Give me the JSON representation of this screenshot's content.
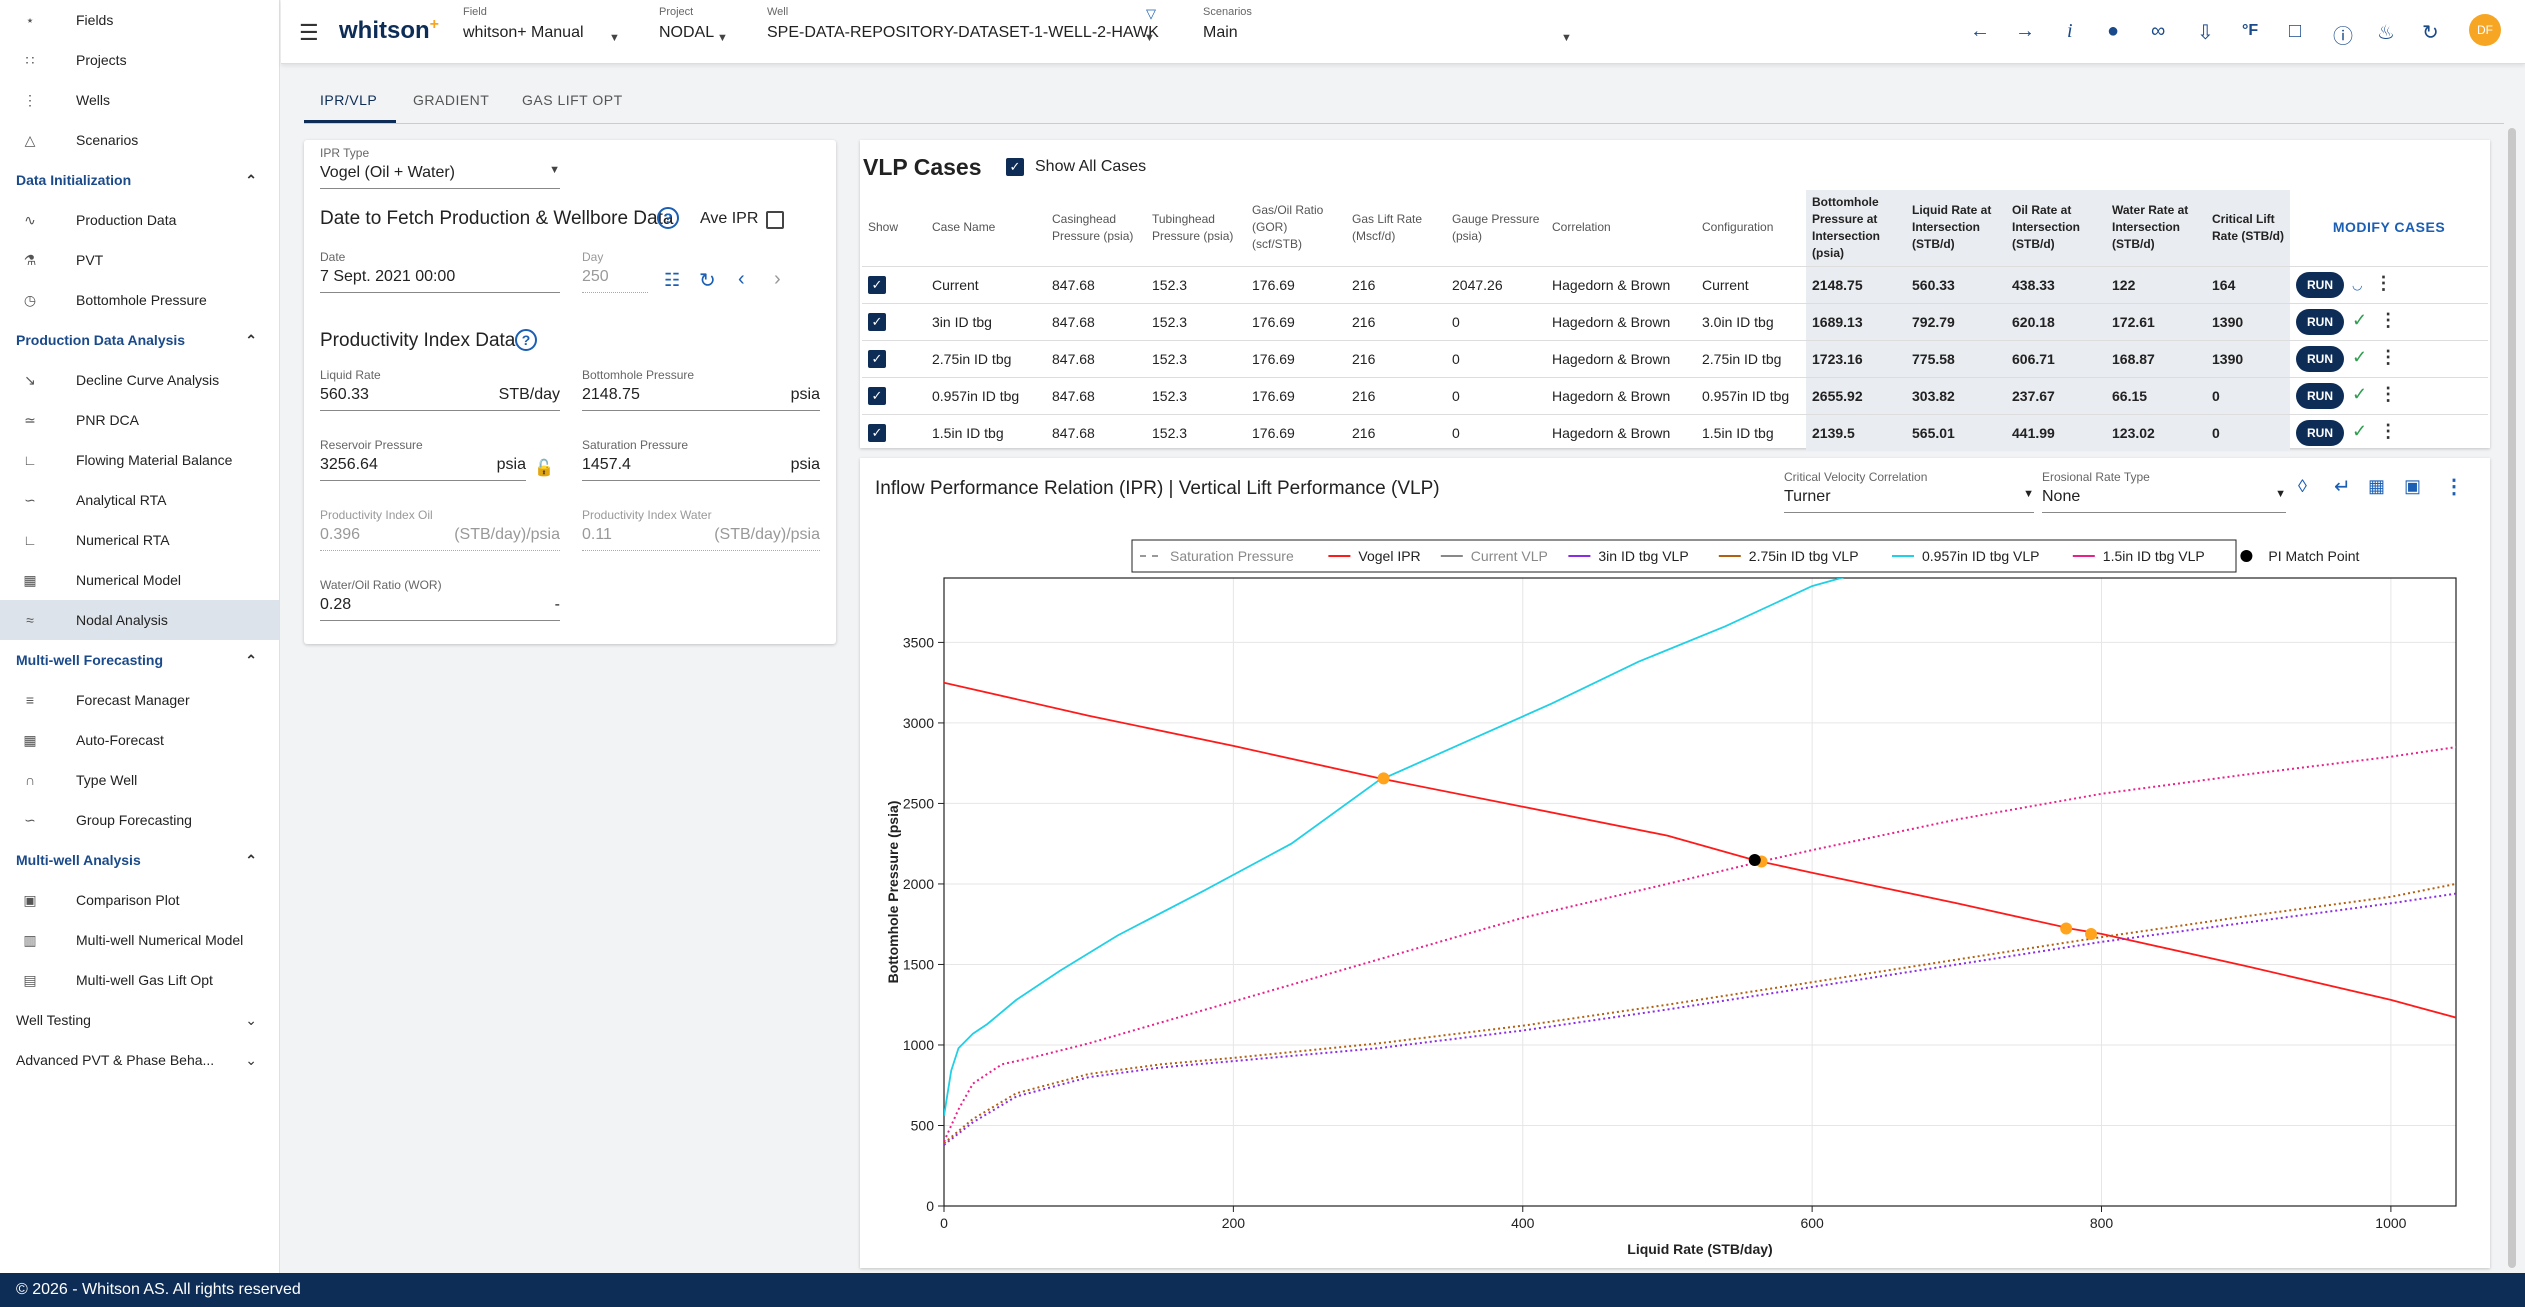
{
  "sidebar": {
    "top_items": [
      {
        "label": "Fields",
        "icon": "fields-icon"
      },
      {
        "label": "Projects",
        "icon": "projects-icon"
      },
      {
        "label": "Wells",
        "icon": "wells-icon"
      },
      {
        "label": "Scenarios",
        "icon": "scenarios-icon"
      }
    ],
    "sections": [
      {
        "title": "Data Initialization",
        "expanded": true,
        "items": [
          {
            "label": "Production Data",
            "icon": "production-data-icon"
          },
          {
            "label": "PVT",
            "icon": "pvt-icon"
          },
          {
            "label": "Bottomhole Pressure",
            "icon": "bottomhole-pressure-icon"
          }
        ]
      },
      {
        "title": "Production Data Analysis",
        "expanded": true,
        "items": [
          {
            "label": "Decline Curve Analysis",
            "icon": "dca-icon"
          },
          {
            "label": "PNR DCA",
            "icon": "pnr-dca-icon"
          },
          {
            "label": "Flowing Material Balance",
            "icon": "fmb-icon"
          },
          {
            "label": "Analytical RTA",
            "icon": "analytical-rta-icon"
          },
          {
            "label": "Numerical RTA",
            "icon": "numerical-rta-icon"
          },
          {
            "label": "Numerical Model",
            "icon": "numerical-model-icon"
          },
          {
            "label": "Nodal Analysis",
            "icon": "nodal-analysis-icon",
            "active": true
          }
        ]
      },
      {
        "title": "Multi-well Forecasting",
        "expanded": true,
        "items": [
          {
            "label": "Forecast Manager",
            "icon": "forecast-manager-icon"
          },
          {
            "label": "Auto-Forecast",
            "icon": "auto-forecast-icon"
          },
          {
            "label": "Type Well",
            "icon": "type-well-icon"
          },
          {
            "label": "Group Forecasting",
            "icon": "group-forecasting-icon"
          }
        ]
      },
      {
        "title": "Multi-well Analysis",
        "expanded": true,
        "items": [
          {
            "label": "Comparison Plot",
            "icon": "comparison-plot-icon"
          },
          {
            "label": "Multi-well Numerical Model",
            "icon": "multiwell-numerical-icon"
          },
          {
            "label": "Multi-well Gas Lift Opt",
            "icon": "multiwell-gaslift-icon"
          }
        ]
      },
      {
        "title": "Well Testing",
        "expanded": false,
        "items": []
      },
      {
        "title": "Advanced PVT & Phase Beha...",
        "expanded": false,
        "items": []
      }
    ]
  },
  "footer": {
    "text": "© 2026 - Whitson AS. All rights reserved"
  },
  "topbar": {
    "brand": "whitson",
    "brand_sup": "+",
    "field": {
      "label": "Field",
      "value": "whitson+ Manual"
    },
    "project": {
      "label": "Project",
      "value": "NODAL"
    },
    "well": {
      "label": "Well",
      "value": "SPE-DATA-REPOSITORY-DATASET-1-WELL-2-HAWK"
    },
    "scenario": {
      "label": "Scenarios",
      "value": "Main"
    },
    "avatar": "DF",
    "icons": [
      "arrow-back-icon",
      "arrow-forward-icon",
      "info-icon",
      "globe-icon",
      "link-icon",
      "download-icon",
      "fahrenheit-icon",
      "feedback-icon",
      "help-icon",
      "bell-icon",
      "refresh-icon"
    ]
  },
  "tabs": [
    {
      "label": "IPR/VLP",
      "active": true
    },
    {
      "label": "GRADIENT"
    },
    {
      "label": "GAS LIFT OPT"
    }
  ],
  "ipr": {
    "type_label": "IPR Type",
    "type_value": "Vogel (Oil + Water)",
    "fetch_title": "Date to Fetch Production & Wellbore Data",
    "ave_ipr_label": "Ave IPR",
    "date_label": "Date",
    "date_value": "7 Sept. 2021 00:00",
    "day_label": "Day",
    "day_value": "250",
    "pi_title": "Productivity Index Data",
    "liquid_rate": {
      "label": "Liquid Rate",
      "value": "560.33",
      "unit": "STB/day"
    },
    "bhp": {
      "label": "Bottomhole Pressure",
      "value": "2148.75",
      "unit": "psia"
    },
    "reservoir_pressure": {
      "label": "Reservoir Pressure",
      "value": "3256.64",
      "unit": "psia"
    },
    "saturation_pressure": {
      "label": "Saturation Pressure",
      "value": "1457.4",
      "unit": "psia"
    },
    "pi_oil": {
      "label": "Productivity Index Oil",
      "value": "0.396",
      "unit": "(STB/day)/psia"
    },
    "pi_water": {
      "label": "Productivity Index Water",
      "value": "0.11",
      "unit": "(STB/day)/psia"
    },
    "wor": {
      "label": "Water/Oil Ratio (WOR)",
      "value": "0.28",
      "unit": "-"
    }
  },
  "vlp": {
    "title": "VLP Cases",
    "show_all_label": "Show All Cases",
    "modify_label": "MODIFY CASES",
    "run_label": "RUN",
    "headers": [
      "Show",
      "Case Name",
      "Casinghead Pressure (psia)",
      "Tubinghead Pressure (psia)",
      "Gas/Oil Ratio (GOR) (scf/STB)",
      "Gas Lift Rate (Mscf/d)",
      "Gauge Pressure (psia)",
      "Correlation",
      "Configuration",
      "Bottomhole Pressure at Intersection (psia)",
      "Liquid Rate at Intersection (STB/d)",
      "Oil Rate at Intersection (STB/d)",
      "Water Rate at Intersection (STB/d)",
      "Critical Lift Rate (STB/d)"
    ],
    "rows": [
      {
        "cells": [
          "Current",
          "847.68",
          "152.3",
          "176.69",
          "216",
          "2047.26",
          "Hagedorn & Brown",
          "Current",
          "2148.75",
          "560.33",
          "438.33",
          "122",
          "164"
        ],
        "status": "loading"
      },
      {
        "cells": [
          "3in ID tbg",
          "847.68",
          "152.3",
          "176.69",
          "216",
          "0",
          "Hagedorn & Brown",
          "3.0in ID tbg",
          "1689.13",
          "792.79",
          "620.18",
          "172.61",
          "1390"
        ],
        "status": "done"
      },
      {
        "cells": [
          "2.75in ID tbg",
          "847.68",
          "152.3",
          "176.69",
          "216",
          "0",
          "Hagedorn & Brown",
          "2.75in ID tbg",
          "1723.16",
          "775.58",
          "606.71",
          "168.87",
          "1390"
        ],
        "status": "done"
      },
      {
        "cells": [
          "0.957in ID tbg",
          "847.68",
          "152.3",
          "176.69",
          "216",
          "0",
          "Hagedorn & Brown",
          "0.957in ID tbg",
          "2655.92",
          "303.82",
          "237.67",
          "66.15",
          "0"
        ],
        "status": "done"
      },
      {
        "cells": [
          "1.5in ID tbg",
          "847.68",
          "152.3",
          "176.69",
          "216",
          "0",
          "Hagedorn & Brown",
          "1.5in ID tbg",
          "2139.5",
          "565.01",
          "441.99",
          "123.02",
          "0"
        ],
        "status": "done"
      }
    ]
  },
  "chart_header": {
    "title": "Inflow Performance Relation (IPR) | Vertical Lift Performance (VLP)",
    "cv_label": "Critical Velocity Correlation",
    "cv_value": "Turner",
    "er_label": "Erosional Rate Type",
    "er_value": "None"
  },
  "chart_data": {
    "type": "line",
    "xlabel": "Liquid Rate (STB/day)",
    "ylabel": "Bottomhole Pressure (psia)",
    "xlim": [
      0,
      1045
    ],
    "ylim": [
      0,
      3900
    ],
    "xticks": [
      0,
      200,
      400,
      600,
      800,
      1000
    ],
    "yticks": [
      0,
      500,
      1000,
      1500,
      2000,
      2500,
      3000,
      3500
    ],
    "grid": true,
    "legend_position": "top",
    "series": [
      {
        "name": "Saturation Pressure",
        "color": "#999999",
        "style": "dashed",
        "legend_only": true,
        "x": [],
        "y": []
      },
      {
        "name": "Vogel IPR",
        "color": "#ff1a1a",
        "style": "solid",
        "x": [
          0,
          100,
          200,
          300,
          400,
          500,
          560,
          600,
          700,
          780,
          800,
          900,
          1000,
          1045
        ],
        "y": [
          3250,
          3045,
          2857,
          2658,
          2480,
          2300,
          2148,
          2070,
          1880,
          1720,
          1690,
          1490,
          1280,
          1170
        ]
      },
      {
        "name": "Current VLP",
        "color": "#888888",
        "style": "solid",
        "legend_only": true,
        "x": [],
        "y": []
      },
      {
        "name": "3in ID tbg VLP",
        "color": "#8b2be2",
        "style": "dotted",
        "x": [
          0,
          20,
          50,
          100,
          150,
          200,
          300,
          400,
          500,
          600,
          700,
          800,
          900,
          1000,
          1045
        ],
        "y": [
          380,
          520,
          680,
          800,
          860,
          900,
          980,
          1090,
          1220,
          1360,
          1500,
          1640,
          1760,
          1880,
          1940
        ]
      },
      {
        "name": "2.75in ID tbg VLP",
        "color": "#b06010",
        "style": "dotted",
        "x": [
          0,
          20,
          50,
          100,
          150,
          200,
          300,
          400,
          500,
          600,
          700,
          800,
          900,
          1000,
          1045
        ],
        "y": [
          390,
          540,
          700,
          820,
          880,
          920,
          1010,
          1120,
          1250,
          1390,
          1530,
          1670,
          1800,
          1920,
          2000
        ]
      },
      {
        "name": "0.957in ID tbg VLP",
        "color": "#1fd0e6",
        "style": "solid",
        "x": [
          0,
          5,
          10,
          20,
          30,
          50,
          80,
          120,
          180,
          240,
          300,
          360,
          420,
          480,
          540,
          600,
          640
        ],
        "y": [
          560,
          840,
          980,
          1070,
          1130,
          1280,
          1460,
          1680,
          1960,
          2250,
          2640,
          2880,
          3120,
          3380,
          3600,
          3850,
          3950
        ]
      },
      {
        "name": "1.5in ID tbg VLP",
        "color": "#e8208a",
        "style": "dotted",
        "x": [
          0,
          10,
          20,
          40,
          60,
          100,
          200,
          300,
          400,
          500,
          565,
          600,
          700,
          800,
          900,
          1000,
          1045
        ],
        "y": [
          400,
          600,
          760,
          880,
          920,
          1010,
          1270,
          1530,
          1790,
          2000,
          2140,
          2210,
          2400,
          2560,
          2680,
          2790,
          2850
        ]
      },
      {
        "name": "PI Match Point",
        "color": "#000000",
        "style": "marker",
        "x": [
          560.33
        ],
        "y": [
          2148.75
        ]
      }
    ],
    "intersections": [
      {
        "x": 303.82,
        "y": 2655.92
      },
      {
        "x": 565.01,
        "y": 2139.5
      },
      {
        "x": 775.58,
        "y": 1723.16
      },
      {
        "x": 792.79,
        "y": 1689.13
      }
    ]
  }
}
